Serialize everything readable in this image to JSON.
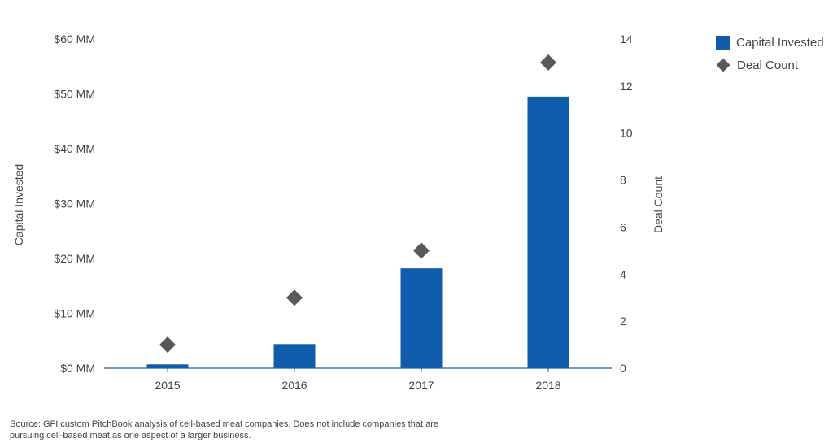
{
  "chart_data": {
    "type": "bar",
    "categories": [
      "2015",
      "2016",
      "2017",
      "2018"
    ],
    "series": [
      {
        "name": "Capital Invested",
        "type": "bar",
        "axis": "left",
        "color": "#0E5CAB",
        "values": [
          0.7,
          4.4,
          18.2,
          49.5
        ]
      },
      {
        "name": "Deal Count",
        "type": "scatter",
        "marker": "diamond",
        "axis": "right",
        "color": "#595959",
        "values": [
          1,
          3,
          5,
          13
        ]
      }
    ],
    "ylabel": "Capital Invested",
    "y2label": "Deal Count",
    "ylim": [
      0,
      60
    ],
    "y2lim": [
      0,
      14
    ],
    "yticks": [
      "$0 MM",
      "$10 MM",
      "$20 MM",
      "$30 MM",
      "$40 MM",
      "$50 MM",
      "$60 MM"
    ],
    "y2ticks": [
      "0",
      "2",
      "4",
      "6",
      "8",
      "10",
      "12",
      "14"
    ],
    "legend_position": "top-right",
    "grid": false,
    "source": "Source: GFI custom PitchBook analysis of cell-based meat companies. Does not include companies that are pursuing cell-based meat as one aspect of a larger business."
  },
  "colors": {
    "axis": "#1F5FAA",
    "bar": "#0E5CAB",
    "marker": "#595959"
  }
}
